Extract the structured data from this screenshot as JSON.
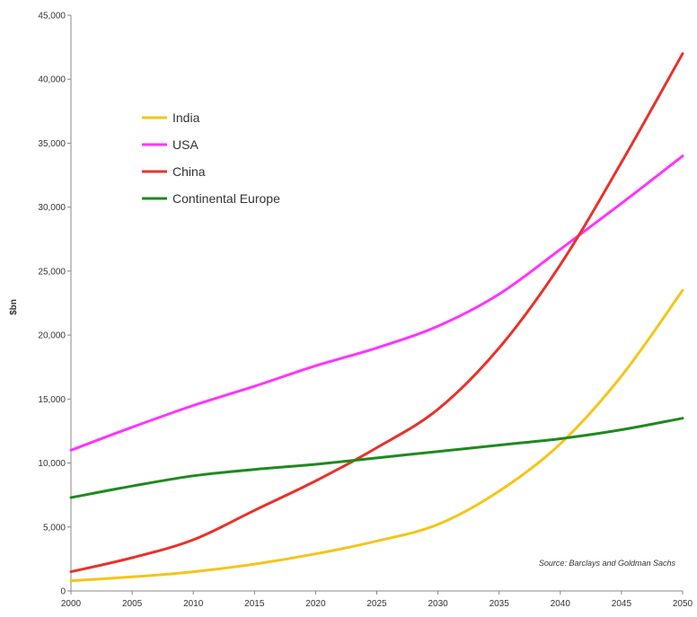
{
  "chart_data": {
    "type": "line",
    "title": "",
    "xlabel": "",
    "ylabel": "$bn",
    "xlim": [
      2000,
      2050
    ],
    "ylim": [
      0,
      45000
    ],
    "x_ticks": [
      "2000",
      "2005",
      "2010",
      "2015",
      "2020",
      "2025",
      "2030",
      "2035",
      "2040",
      "2045",
      "2050"
    ],
    "y_ticks": [
      "0",
      "5,000",
      "10,000",
      "15,000",
      "20,000",
      "25,000",
      "30,000",
      "35,000",
      "40,000",
      "45,000"
    ],
    "legend_position": "upper-left",
    "grid": false,
    "source": "Source: Barclays and Goldman Sachs",
    "x": [
      2000,
      2005,
      2010,
      2015,
      2020,
      2025,
      2030,
      2035,
      2040,
      2045,
      2050
    ],
    "series": [
      {
        "name": "India",
        "color": "#f5c518",
        "values": [
          800,
          1100,
          1500,
          2100,
          2900,
          3900,
          5200,
          7800,
          11500,
          16800,
          23500
        ]
      },
      {
        "name": "USA",
        "color": "#ff33ff",
        "values": [
          11000,
          12800,
          14500,
          16000,
          17600,
          19000,
          20700,
          23200,
          26700,
          30300,
          34000
        ]
      },
      {
        "name": "China",
        "color": "#e8322a",
        "values": [
          1500,
          2600,
          4000,
          6300,
          8600,
          11200,
          14200,
          19000,
          25500,
          33500,
          42000
        ]
      },
      {
        "name": "Continental Europe",
        "color": "#1e8a1e",
        "values": [
          7300,
          8200,
          9000,
          9500,
          9900,
          10400,
          10900,
          11400,
          11900,
          12600,
          13500
        ]
      }
    ]
  }
}
